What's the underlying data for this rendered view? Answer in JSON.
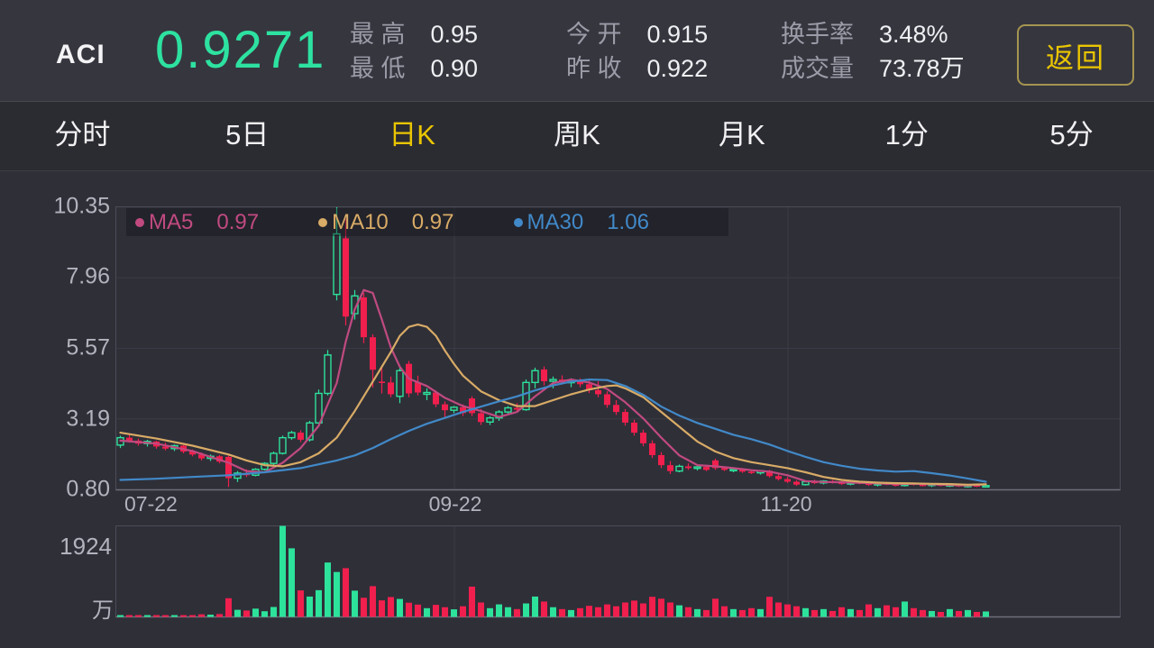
{
  "header": {
    "symbol": "ACI",
    "price": "0.9271",
    "stats": [
      {
        "label": "最 高",
        "value": "0.95"
      },
      {
        "label": "最 低",
        "value": "0.90"
      },
      {
        "label": "今 开",
        "value": "0.915"
      },
      {
        "label": "昨 收",
        "value": "0.922"
      },
      {
        "label": "换手率",
        "value": "3.48%"
      },
      {
        "label": "成交量",
        "value": "73.78万"
      }
    ],
    "back_label": "返回"
  },
  "tabs": {
    "items": [
      "分时",
      "5日",
      "日K",
      "周K",
      "月K",
      "1分",
      "5分"
    ],
    "active": "日K"
  },
  "colors": {
    "up_green": "#2de29b",
    "down_red": "#f01f4d",
    "ma5": "#c04a80",
    "ma10": "#d8ab66",
    "ma30": "#4189c8",
    "accent_yellow": "#e9c502",
    "pane_border": "#4c4c57",
    "grid_line": "#3b3b45",
    "background": "#2f2f38"
  },
  "chart_data": {
    "type": "candlestick+volume",
    "title": "ACI 日K (daily candlestick with MA5/MA10/MA30 and volume)",
    "y_axis": {
      "min": 0.8,
      "max": 10.35,
      "tick_labels": [
        "10.35",
        "7.96",
        "5.57",
        "3.19",
        "0.80"
      ]
    },
    "x_axis": {
      "tick_labels": [
        "07-22",
        "09-22",
        "11-20"
      ],
      "gridline_indices": [
        37,
        74
      ]
    },
    "legend": [
      {
        "name": "MA5",
        "value": "0.97"
      },
      {
        "name": "MA10",
        "value": "0.97"
      },
      {
        "name": "MA30",
        "value": "1.06"
      }
    ],
    "volume_axis": {
      "max": 1924,
      "max_label": "1924",
      "unit": "万"
    },
    "candles": [
      [
        2.3,
        2.62,
        2.2,
        2.55
      ],
      [
        2.55,
        2.65,
        2.38,
        2.45
      ],
      [
        2.45,
        2.52,
        2.28,
        2.35
      ],
      [
        2.35,
        2.48,
        2.25,
        2.42
      ],
      [
        2.42,
        2.45,
        2.18,
        2.25
      ],
      [
        2.25,
        2.38,
        2.12,
        2.18
      ],
      [
        2.18,
        2.32,
        2.1,
        2.28
      ],
      [
        2.28,
        2.3,
        2.02,
        2.08
      ],
      [
        2.08,
        2.15,
        1.92,
        1.98
      ],
      [
        1.98,
        2.05,
        1.78,
        1.85
      ],
      [
        1.85,
        1.98,
        1.76,
        1.92
      ],
      [
        1.92,
        1.96,
        1.68,
        1.74
      ],
      [
        1.9,
        1.95,
        0.88,
        1.18
      ],
      [
        1.18,
        1.42,
        1.05,
        1.35
      ],
      [
        1.35,
        1.48,
        1.22,
        1.28
      ],
      [
        1.28,
        1.52,
        1.24,
        1.48
      ],
      [
        1.48,
        1.72,
        1.44,
        1.68
      ],
      [
        1.68,
        2.08,
        1.62,
        2.02
      ],
      [
        2.02,
        2.62,
        1.98,
        2.55
      ],
      [
        2.55,
        2.78,
        2.48,
        2.72
      ],
      [
        2.72,
        2.8,
        2.4,
        2.48
      ],
      [
        2.48,
        3.12,
        2.42,
        3.05
      ],
      [
        3.05,
        4.18,
        3.0,
        4.05
      ],
      [
        4.05,
        5.52,
        3.98,
        5.35
      ],
      [
        7.4,
        10.35,
        7.2,
        9.45
      ],
      [
        9.3,
        9.95,
        6.35,
        6.65
      ],
      [
        6.75,
        7.55,
        6.55,
        7.35
      ],
      [
        7.3,
        7.45,
        5.75,
        5.95
      ],
      [
        5.95,
        6.05,
        4.25,
        4.85
      ],
      [
        4.45,
        5.0,
        4.05,
        4.42
      ],
      [
        4.42,
        4.62,
        3.92,
        4.02
      ],
      [
        3.95,
        4.92,
        3.72,
        4.82
      ],
      [
        5.05,
        5.15,
        3.92,
        4.05
      ],
      [
        4.42,
        4.65,
        3.98,
        4.08
      ],
      [
        4.02,
        4.22,
        3.82,
        4.08
      ],
      [
        4.08,
        4.15,
        3.58,
        3.68
      ],
      [
        3.68,
        3.78,
        3.22,
        3.48
      ],
      [
        3.48,
        3.62,
        3.38,
        3.58
      ],
      [
        3.58,
        3.68,
        3.28,
        3.38
      ],
      [
        3.88,
        3.95,
        3.28,
        3.38
      ],
      [
        3.38,
        3.52,
        2.98,
        3.08
      ],
      [
        3.08,
        3.28,
        2.98,
        3.22
      ],
      [
        3.22,
        3.48,
        3.12,
        3.42
      ],
      [
        3.42,
        3.62,
        3.32,
        3.56
      ],
      [
        3.56,
        3.72,
        3.42,
        3.5
      ],
      [
        3.5,
        4.52,
        3.46,
        4.42
      ],
      [
        4.42,
        4.92,
        4.22,
        4.82
      ],
      [
        4.86,
        4.96,
        4.32,
        4.46
      ],
      [
        4.46,
        4.62,
        4.22,
        4.52
      ],
      [
        4.52,
        4.66,
        4.36,
        4.42
      ],
      [
        4.42,
        4.56,
        4.26,
        4.46
      ],
      [
        4.46,
        4.56,
        4.26,
        4.36
      ],
      [
        4.36,
        4.48,
        4.06,
        4.16
      ],
      [
        4.16,
        4.46,
        3.92,
        4.02
      ],
      [
        4.02,
        4.12,
        3.56,
        3.66
      ],
      [
        3.66,
        3.82,
        3.32,
        3.42
      ],
      [
        3.42,
        3.52,
        2.96,
        3.06
      ],
      [
        3.06,
        3.16,
        2.62,
        2.72
      ],
      [
        2.72,
        2.82,
        2.26,
        2.36
      ],
      [
        2.36,
        2.46,
        1.86,
        1.96
      ],
      [
        1.96,
        2.06,
        1.52,
        1.62
      ],
      [
        1.62,
        1.76,
        1.32,
        1.42
      ],
      [
        1.42,
        1.64,
        1.38,
        1.58
      ],
      [
        1.58,
        1.68,
        1.46,
        1.52
      ],
      [
        1.52,
        1.62,
        1.44,
        1.56
      ],
      [
        1.56,
        1.6,
        1.42,
        1.46
      ],
      [
        1.78,
        1.84,
        1.46,
        1.52
      ],
      [
        1.52,
        1.58,
        1.42,
        1.46
      ],
      [
        1.46,
        1.54,
        1.38,
        1.48
      ],
      [
        1.48,
        1.52,
        1.36,
        1.4
      ],
      [
        1.4,
        1.46,
        1.32,
        1.36
      ],
      [
        1.36,
        1.46,
        1.3,
        1.43
      ],
      [
        1.43,
        1.46,
        1.2,
        1.25
      ],
      [
        1.25,
        1.33,
        1.1,
        1.15
      ],
      [
        1.15,
        1.22,
        1.02,
        1.06
      ],
      [
        1.06,
        1.11,
        0.92,
        0.96
      ],
      [
        0.96,
        1.09,
        0.93,
        1.06
      ],
      [
        1.06,
        1.13,
        0.98,
        1.02
      ],
      [
        1.02,
        1.11,
        0.97,
        1.08
      ],
      [
        1.08,
        1.12,
        1.0,
        1.04
      ],
      [
        1.04,
        1.08,
        0.95,
        0.98
      ],
      [
        0.98,
        1.07,
        0.94,
        1.05
      ],
      [
        1.05,
        1.07,
        0.97,
        1.0
      ],
      [
        1.0,
        1.04,
        0.92,
        0.95
      ],
      [
        0.95,
        1.03,
        0.9,
        1.01
      ],
      [
        1.01,
        1.05,
        0.94,
        0.97
      ],
      [
        0.97,
        1.0,
        0.9,
        0.93
      ],
      [
        0.93,
        1.03,
        0.9,
        1.0
      ],
      [
        1.0,
        1.03,
        0.93,
        0.96
      ],
      [
        0.96,
        1.0,
        0.9,
        0.94
      ],
      [
        0.94,
        1.01,
        0.88,
        0.98
      ],
      [
        0.98,
        1.0,
        0.9,
        0.92
      ],
      [
        0.92,
        0.99,
        0.88,
        0.96
      ],
      [
        0.96,
        0.98,
        0.88,
        0.9
      ],
      [
        0.9,
        0.96,
        0.86,
        0.94
      ],
      [
        0.94,
        0.97,
        0.88,
        0.91
      ],
      [
        0.91,
        0.95,
        0.87,
        0.93
      ]
    ],
    "volumes": [
      38,
      30,
      34,
      28,
      32,
      30,
      26,
      30,
      34,
      55,
      48,
      60,
      395,
      150,
      135,
      175,
      120,
      210,
      1924,
      1450,
      560,
      430,
      565,
      1150,
      950,
      1030,
      555,
      405,
      650,
      350,
      420,
      380,
      300,
      260,
      185,
      255,
      205,
      160,
      225,
      640,
      305,
      185,
      265,
      205,
      165,
      285,
      430,
      325,
      205,
      165,
      145,
      185,
      235,
      205,
      265,
      225,
      305,
      345,
      285,
      425,
      385,
      305,
      245,
      205,
      165,
      145,
      385,
      225,
      165,
      145,
      185,
      165,
      425,
      305,
      265,
      225,
      185,
      145,
      165,
      125,
      205,
      165,
      145,
      265,
      185,
      245,
      205,
      325,
      185,
      145,
      125,
      105,
      165,
      125,
      145,
      105,
      115
    ],
    "ma5_points": [
      [
        0,
        2.45
      ],
      [
        4,
        2.35
      ],
      [
        8,
        2.1
      ],
      [
        12,
        1.7
      ],
      [
        14,
        1.42
      ],
      [
        16,
        1.38
      ],
      [
        18,
        1.7
      ],
      [
        20,
        2.2
      ],
      [
        22,
        2.95
      ],
      [
        24,
        4.4
      ],
      [
        25,
        5.8
      ],
      [
        26,
        6.9
      ],
      [
        27,
        7.55
      ],
      [
        28,
        7.45
      ],
      [
        29,
        6.55
      ],
      [
        30,
        5.6
      ],
      [
        31,
        4.95
      ],
      [
        32,
        4.55
      ],
      [
        34,
        4.3
      ],
      [
        36,
        3.9
      ],
      [
        38,
        3.62
      ],
      [
        40,
        3.45
      ],
      [
        42,
        3.25
      ],
      [
        44,
        3.42
      ],
      [
        46,
        3.95
      ],
      [
        48,
        4.4
      ],
      [
        50,
        4.52
      ],
      [
        52,
        4.42
      ],
      [
        54,
        4.2
      ],
      [
        56,
        3.75
      ],
      [
        58,
        3.2
      ],
      [
        60,
        2.55
      ],
      [
        62,
        1.95
      ],
      [
        64,
        1.62
      ],
      [
        66,
        1.58
      ],
      [
        68,
        1.52
      ],
      [
        70,
        1.45
      ],
      [
        72,
        1.4
      ],
      [
        74,
        1.28
      ],
      [
        76,
        1.08
      ],
      [
        78,
        1.05
      ],
      [
        80,
        1.04
      ],
      [
        82,
        1.02
      ],
      [
        84,
        1.0
      ],
      [
        86,
        0.98
      ],
      [
        88,
        0.99
      ],
      [
        90,
        0.97
      ],
      [
        92,
        0.95
      ],
      [
        94,
        0.93
      ],
      [
        96,
        0.97
      ]
    ],
    "ma10_points": [
      [
        0,
        2.72
      ],
      [
        4,
        2.52
      ],
      [
        8,
        2.28
      ],
      [
        12,
        1.98
      ],
      [
        14,
        1.78
      ],
      [
        16,
        1.62
      ],
      [
        18,
        1.58
      ],
      [
        20,
        1.72
      ],
      [
        22,
        2.02
      ],
      [
        24,
        2.55
      ],
      [
        26,
        3.45
      ],
      [
        28,
        4.45
      ],
      [
        30,
        5.45
      ],
      [
        31,
        6.0
      ],
      [
        32,
        6.3
      ],
      [
        33,
        6.38
      ],
      [
        34,
        6.3
      ],
      [
        35,
        6.0
      ],
      [
        36,
        5.5
      ],
      [
        37,
        5.05
      ],
      [
        38,
        4.65
      ],
      [
        40,
        4.12
      ],
      [
        42,
        3.82
      ],
      [
        44,
        3.62
      ],
      [
        46,
        3.62
      ],
      [
        48,
        3.82
      ],
      [
        50,
        4.02
      ],
      [
        52,
        4.18
      ],
      [
        54,
        4.3
      ],
      [
        55,
        4.32
      ],
      [
        56,
        4.22
      ],
      [
        58,
        3.92
      ],
      [
        60,
        3.42
      ],
      [
        62,
        2.92
      ],
      [
        64,
        2.42
      ],
      [
        66,
        2.08
      ],
      [
        68,
        1.86
      ],
      [
        70,
        1.72
      ],
      [
        72,
        1.62
      ],
      [
        74,
        1.52
      ],
      [
        76,
        1.38
      ],
      [
        78,
        1.22
      ],
      [
        80,
        1.12
      ],
      [
        82,
        1.06
      ],
      [
        84,
        1.03
      ],
      [
        86,
        1.01
      ],
      [
        88,
        1.0
      ],
      [
        90,
        0.99
      ],
      [
        92,
        0.98
      ],
      [
        94,
        0.96
      ],
      [
        96,
        0.97
      ]
    ],
    "ma30_points": [
      [
        0,
        1.12
      ],
      [
        4,
        1.16
      ],
      [
        8,
        1.22
      ],
      [
        12,
        1.28
      ],
      [
        16,
        1.38
      ],
      [
        20,
        1.52
      ],
      [
        24,
        1.78
      ],
      [
        26,
        1.95
      ],
      [
        28,
        2.2
      ],
      [
        30,
        2.5
      ],
      [
        32,
        2.78
      ],
      [
        34,
        3.02
      ],
      [
        36,
        3.22
      ],
      [
        38,
        3.42
      ],
      [
        40,
        3.6
      ],
      [
        42,
        3.78
      ],
      [
        44,
        3.95
      ],
      [
        46,
        4.15
      ],
      [
        48,
        4.32
      ],
      [
        50,
        4.45
      ],
      [
        52,
        4.52
      ],
      [
        54,
        4.5
      ],
      [
        56,
        4.3
      ],
      [
        58,
        4.0
      ],
      [
        60,
        3.6
      ],
      [
        62,
        3.3
      ],
      [
        64,
        3.05
      ],
      [
        66,
        2.85
      ],
      [
        68,
        2.65
      ],
      [
        70,
        2.5
      ],
      [
        72,
        2.32
      ],
      [
        74,
        2.1
      ],
      [
        76,
        1.9
      ],
      [
        78,
        1.72
      ],
      [
        80,
        1.6
      ],
      [
        82,
        1.5
      ],
      [
        84,
        1.44
      ],
      [
        86,
        1.4
      ],
      [
        88,
        1.42
      ],
      [
        90,
        1.35
      ],
      [
        92,
        1.27
      ],
      [
        94,
        1.17
      ],
      [
        96,
        1.06
      ]
    ]
  }
}
